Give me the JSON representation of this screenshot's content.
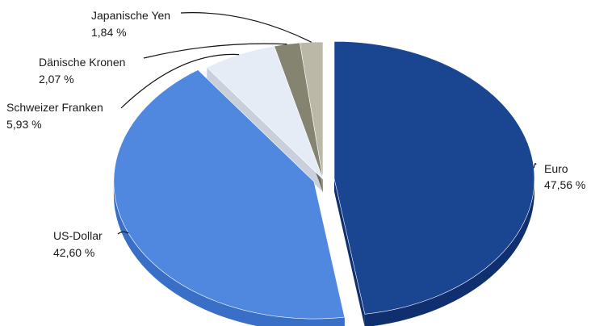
{
  "chart_data": {
    "type": "pie",
    "title": "",
    "slices": [
      {
        "name": "Euro",
        "value": 47.56,
        "label": "47,56 %",
        "color": "#1a4591",
        "side_color": "#0f2f6e"
      },
      {
        "name": "US-Dollar",
        "value": 42.6,
        "label": "42,60 %",
        "color": "#5088e0",
        "side_color": "#3a6fc8"
      },
      {
        "name": "Schweizer Franken",
        "value": 5.93,
        "label": "5,93 %",
        "color": "#e6ecf6",
        "side_color": "#c9d0db"
      },
      {
        "name": "Dänische Kronen",
        "value": 2.07,
        "label": "2,07 %",
        "color": "#858471",
        "side_color": "#6b6a59"
      },
      {
        "name": "Japanische Yen",
        "value": 1.84,
        "label": "1,84 %",
        "color": "#bbb8a7",
        "side_color": "#9e9b8b"
      }
    ],
    "legend": "none",
    "start_angle_deg": 0,
    "direction": "clockwise",
    "exploded": [
      "Euro",
      "US-Dollar"
    ]
  }
}
